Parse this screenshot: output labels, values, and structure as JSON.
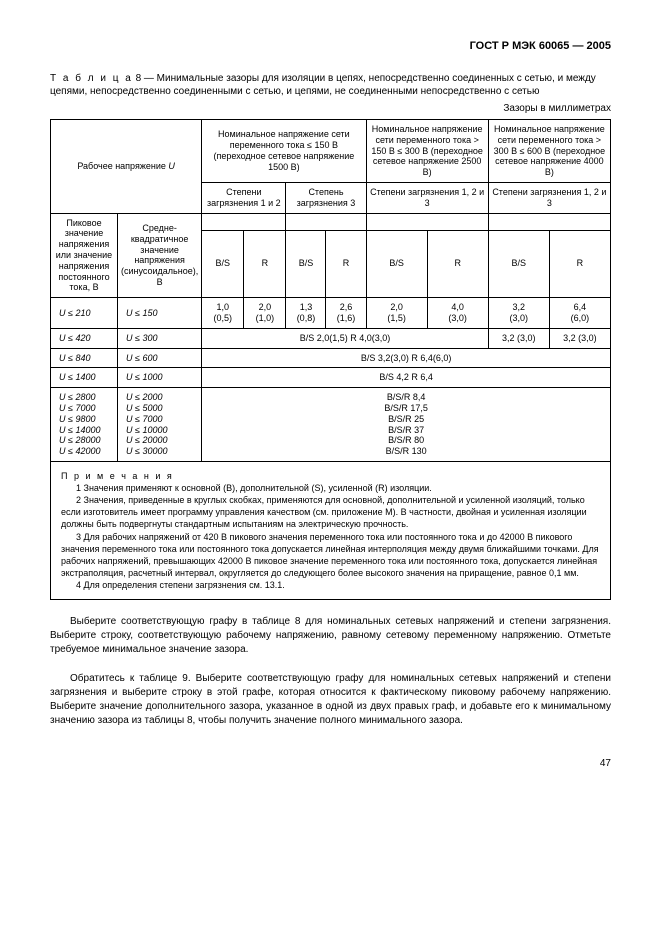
{
  "header": {
    "doc_id": "ГОСТ Р МЭК 60065 — 2005"
  },
  "caption": {
    "prefix": "Т а б л и ц а",
    "number": "8",
    "text": "— Минимальные зазоры для изоляции в цепях, непосредственно соединенных с сетью, и между цепями, непосредственно соединенными с сетью, и цепями, не соединенными непосредственно с сетью"
  },
  "units": "Зазоры в миллиметрах",
  "col_headers": {
    "working_voltage": "Рабочее напряжение",
    "u_sym": "U",
    "group1": "Номинальное напряжение сети переменного тока ≤ 150 В (переходное сетевое напряжение 1500 В)",
    "group2": "Номинальное напряжение сети переменного тока > 150 В ≤ 300 В (переходное сетевое напряжение 2500 В)",
    "group3": "Номинальное напряжение сети переменного тока > 300 В ≤ 600 В (переходное сетевое напряжение 4000 В)",
    "pollution12": "Степени загрязнения 1 и 2",
    "pollution3": "Степень загрязнения 3",
    "pollution123": "Степени загрязнения 1, 2 и 3",
    "peak_label": "Пиковое значение напряжения или значение напряжения постоянного тока, В",
    "rms_label": "Средне-квадратичное значение напряжения (синусоидальное), В",
    "bs": "B/S",
    "r": "R"
  },
  "rows_main": [
    {
      "u1": "U ≤ 210",
      "u2": "U ≤ 150",
      "c": [
        "1,0 (0,5)",
        "2,0 (1,0)",
        "1,3 (0,8)",
        "2,6 (1,6)",
        "2,0 (1,5)",
        "4,0 (3,0)",
        "3,2 (3,0)",
        "6,4 (6,0)"
      ]
    }
  ],
  "row_420": {
    "u1": "U ≤ 420",
    "u2": "U ≤ 300",
    "span6": "B/S 2,0(1,5)   R 4,0(3,0)",
    "c7": "3,2 (3,0)",
    "c8": "3,2 (3,0)"
  },
  "row_840": {
    "u1": "U ≤ 840",
    "u2": "U ≤ 600",
    "span8": "B/S 3,2(3,0)   R 6,4(6,0)"
  },
  "row_1400": {
    "u1": "U ≤ 1400",
    "u2": "U ≤ 1000",
    "span8": "B/S 4,2   R 6,4"
  },
  "rows_bsr": [
    {
      "u1": "U ≤ 2800",
      "u2": "U ≤ 2000",
      "v": "B/S/R   8,4"
    },
    {
      "u1": "U ≤ 7000",
      "u2": "U ≤ 5000",
      "v": "B/S/R   17,5"
    },
    {
      "u1": "U ≤ 9800",
      "u2": "U ≤ 7000",
      "v": "B/S/R   25"
    },
    {
      "u1": "U ≤ 14000",
      "u2": "U ≤ 10000",
      "v": "B/S/R   37"
    },
    {
      "u1": "U ≤ 28000",
      "u2": "U ≤ 20000",
      "v": "B/S/R   80"
    },
    {
      "u1": "U ≤ 42000",
      "u2": "U ≤ 30000",
      "v": "B/S/R   130"
    }
  ],
  "notes": {
    "title": "П р и м е ч а н и я",
    "items": [
      "1 Значения применяют к  основной (B),   дополнительной  (S), усиленной (R) изоляции.",
      "2 Значения, приведенные в круглых скобках, применяются для основной, дополнительной и усиленной изоляций, только если изготовитель имеет программу управления качеством (см. приложение М). В частности, двойная и усиленная изоляции должны быть подвергнуты стандартным испытаниям на электрическую прочность.",
      "3 Для рабочих напряжений от 420 В пикового значения переменного тока или постоянного тока и до 42000 В пикового значения переменного тока или постоянного тока допускается линейная интерполяция между двумя ближайшими точками. Для рабочих напряжений, превышающих 42000 В пиковое значение переменного тока или постоянного тока, допускается линейная экстраполяция, расчетный интервал, округляется до следующего более высокого значения на приращение, равное 0,1 мм.",
      "4 Для определения степени загрязнения см. 13.1."
    ]
  },
  "body": {
    "p1": "Выберите соответствующую графу в таблице 8 для номинальных сетевых напряжений и степени загрязнения. Выберите строку, соответствующую рабочему напряжению, равному сетевому переменному напряжению. Отметьте требуемое минимальное значение зазора.",
    "p2": "Обратитесь к таблице 9. Выберите соответствующую графу для номинальных сетевых напряжений и степени загрязнения и выберите строку в этой графе, которая относится к фактическому пиковому рабочему напряжению. Выберите значение дополнительного зазора, указанное в одной из двух правых граф, и добавьте его к минимальному значению зазора из таблицы 8, чтобы получить значение полного минимального зазора."
  },
  "page": "47"
}
